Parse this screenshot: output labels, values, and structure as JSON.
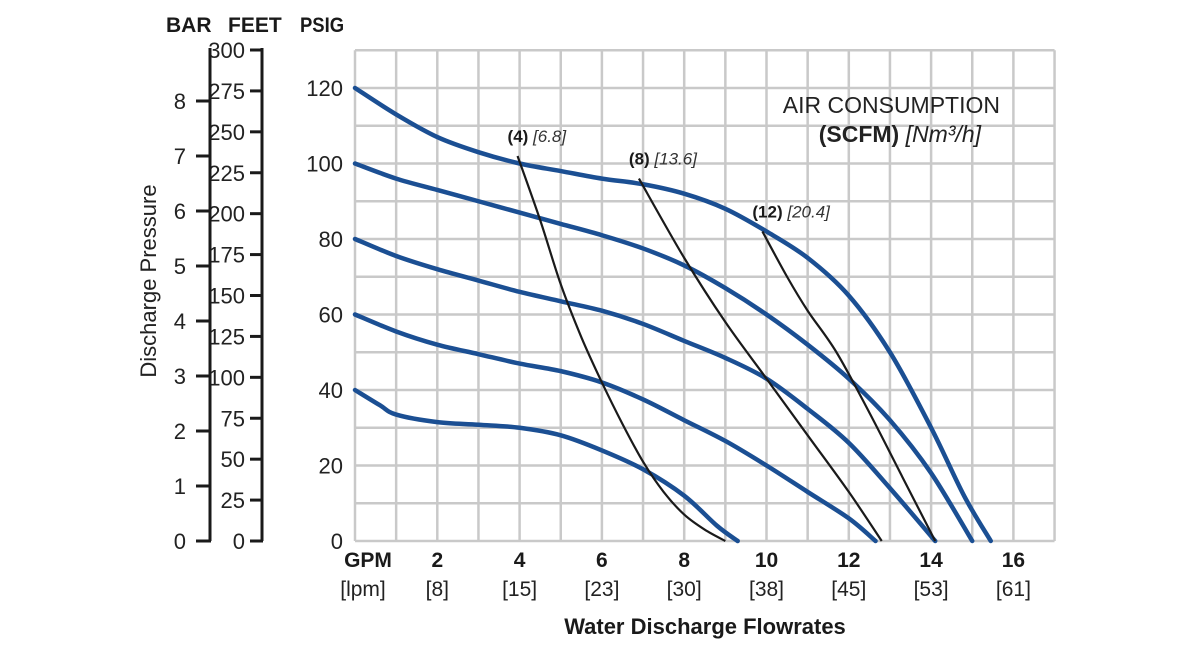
{
  "chart_data": {
    "type": "line",
    "title": "",
    "xlabel": "Water Discharge Flowrates",
    "x_unit_label": "GPM",
    "x_unit_label_alt": "[lpm]",
    "xlim": [
      0,
      17
    ],
    "x_ticks": [
      {
        "value": 2,
        "label": "2",
        "alt": "[8]"
      },
      {
        "value": 4,
        "label": "4",
        "alt": "[15]"
      },
      {
        "value": 6,
        "label": "6",
        "alt": "[23]"
      },
      {
        "value": 8,
        "label": "8",
        "alt": "[30]"
      },
      {
        "value": 10,
        "label": "10",
        "alt": "[38]"
      },
      {
        "value": 12,
        "label": "12",
        "alt": "[45]"
      },
      {
        "value": 14,
        "label": "14",
        "alt": "[53]"
      },
      {
        "value": 16,
        "label": "16",
        "alt": "[61]"
      }
    ],
    "ylabel": "Discharge Pressure",
    "ylim": [
      0,
      130
    ],
    "y_axes": [
      {
        "name": "BAR",
        "ticks": [
          "0",
          "1",
          "2",
          "3",
          "4",
          "5",
          "6",
          "7",
          "8"
        ],
        "step": 1,
        "max": 8.96
      },
      {
        "name": "FEET",
        "ticks": [
          "0",
          "25",
          "50",
          "75",
          "100",
          "125",
          "150",
          "175",
          "200",
          "225",
          "250",
          "275",
          "300"
        ],
        "step": 25,
        "max": 300
      },
      {
        "name": "PSIG",
        "ticks": [
          "0",
          "20",
          "40",
          "60",
          "80",
          "100",
          "120"
        ],
        "step": 20,
        "max": 130
      }
    ],
    "grid": true,
    "legend_title": "AIR CONSUMPTION",
    "legend_subtitle_bold": "(SCFM)",
    "legend_subtitle_italic": "[Nm³/h]",
    "series": [
      {
        "name": "120 psig curve",
        "color": "#1b4f93",
        "points": [
          [
            0,
            120
          ],
          [
            1,
            113
          ],
          [
            2,
            107
          ],
          [
            3,
            103
          ],
          [
            4,
            100
          ],
          [
            5,
            98
          ],
          [
            6,
            96
          ],
          [
            7,
            94.5
          ],
          [
            8,
            92
          ],
          [
            9,
            88
          ],
          [
            10,
            82
          ],
          [
            11,
            75
          ],
          [
            12,
            65
          ],
          [
            13,
            50
          ],
          [
            14,
            30
          ],
          [
            14.8,
            12
          ],
          [
            15.45,
            0
          ]
        ]
      },
      {
        "name": "100 psig curve",
        "color": "#1b4f93",
        "points": [
          [
            0,
            100
          ],
          [
            1,
            96
          ],
          [
            2,
            93
          ],
          [
            3,
            90
          ],
          [
            4,
            87
          ],
          [
            5,
            84
          ],
          [
            6,
            81
          ],
          [
            7,
            77.5
          ],
          [
            8,
            73
          ],
          [
            9,
            67
          ],
          [
            10,
            60
          ],
          [
            11,
            52
          ],
          [
            12,
            43
          ],
          [
            13,
            32
          ],
          [
            14,
            18
          ],
          [
            15,
            0
          ]
        ]
      },
      {
        "name": "80 psig curve",
        "color": "#1b4f93",
        "points": [
          [
            0,
            80
          ],
          [
            1,
            75.5
          ],
          [
            2,
            72
          ],
          [
            3,
            69
          ],
          [
            4,
            66
          ],
          [
            5,
            63.5
          ],
          [
            6,
            61
          ],
          [
            7,
            57.5
          ],
          [
            8,
            53
          ],
          [
            9,
            48.5
          ],
          [
            10,
            43
          ],
          [
            11,
            35
          ],
          [
            12,
            26
          ],
          [
            13,
            14
          ],
          [
            14.1,
            0
          ]
        ]
      },
      {
        "name": "60 psig curve",
        "color": "#1b4f93",
        "points": [
          [
            0,
            60
          ],
          [
            1,
            55.5
          ],
          [
            2,
            52
          ],
          [
            3,
            49.5
          ],
          [
            4,
            47
          ],
          [
            5,
            45
          ],
          [
            6,
            42
          ],
          [
            7,
            37.5
          ],
          [
            8,
            32
          ],
          [
            9,
            26.5
          ],
          [
            10,
            20
          ],
          [
            11,
            13
          ],
          [
            12,
            6
          ],
          [
            12.65,
            0
          ]
        ]
      },
      {
        "name": "40 psig curve",
        "color": "#1b4f93",
        "points": [
          [
            0,
            40
          ],
          [
            0.6,
            36
          ],
          [
            1,
            33.5
          ],
          [
            2,
            31.5
          ],
          [
            3,
            30.8
          ],
          [
            4,
            30
          ],
          [
            5,
            28
          ],
          [
            6,
            24
          ],
          [
            7,
            19
          ],
          [
            8,
            12
          ],
          [
            8.8,
            4
          ],
          [
            9.3,
            0
          ]
        ]
      }
    ],
    "air_lines": [
      {
        "label": "(4)",
        "label_alt": "[6.8]",
        "color": "#1a1a1a",
        "points": [
          [
            3.95,
            102
          ],
          [
            4.5,
            85
          ],
          [
            5,
            68
          ],
          [
            5.5,
            54
          ],
          [
            6,
            42
          ],
          [
            6.5,
            31
          ],
          [
            7,
            21
          ],
          [
            7.5,
            13
          ],
          [
            8,
            7
          ],
          [
            8.5,
            3
          ],
          [
            9.0,
            0
          ]
        ]
      },
      {
        "label": "(8)",
        "label_alt": "[13.6]",
        "color": "#1a1a1a",
        "points": [
          [
            6.9,
            96
          ],
          [
            8,
            75
          ],
          [
            9,
            58
          ],
          [
            10,
            43
          ],
          [
            11,
            28
          ],
          [
            12,
            13
          ],
          [
            12.8,
            0
          ]
        ]
      },
      {
        "label": "(12)",
        "label_alt": "[20.4]",
        "color": "#1a1a1a",
        "points": [
          [
            9.9,
            82
          ],
          [
            10.5,
            70
          ],
          [
            11,
            61
          ],
          [
            11.7,
            50
          ],
          [
            12.5,
            34
          ],
          [
            13.3,
            17
          ],
          [
            14.1,
            0
          ]
        ]
      }
    ]
  }
}
